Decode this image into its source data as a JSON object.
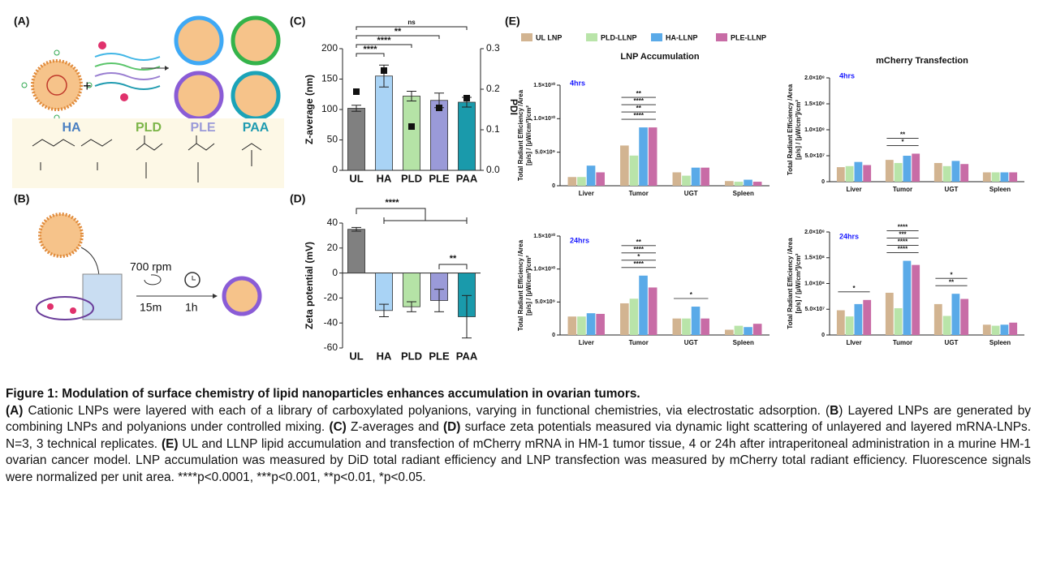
{
  "panels": {
    "a": "(A)",
    "b": "(B)",
    "c": "(C)",
    "d": "(D)",
    "e": "(E)"
  },
  "polymers": [
    "HA",
    "PLD",
    "PLE",
    "PAA"
  ],
  "mixing": {
    "speed": "700 rpm",
    "mix_time": "15m",
    "incubation": "1h"
  },
  "chart_data": [
    {
      "type": "bar",
      "y_label": "Z-average (nm)",
      "y2_label": "PDI",
      "categories": [
        "UL",
        "HA",
        "PLD",
        "PLE",
        "PAA"
      ],
      "values": [
        102,
        155,
        122,
        115,
        112
      ],
      "errors": [
        5,
        18,
        8,
        12,
        8
      ],
      "colors": [
        "#808080",
        "#a9d3f5",
        "#b5e3a6",
        "#9a9ad8",
        "#1a9aab"
      ],
      "ylim": [
        0,
        200
      ],
      "yticks": [
        0,
        50,
        100,
        150,
        200
      ],
      "y2lim": [
        0,
        0.3
      ],
      "y2ticks": [
        0.0,
        0.1,
        0.2,
        0.3
      ],
      "y2_points": [
        0.194,
        0.246,
        0.108,
        0.154,
        0.178
      ],
      "annotations": [
        "****",
        "****",
        "**",
        "ns"
      ]
    },
    {
      "type": "bar",
      "y_label": "Zeta potential (mV)",
      "categories": [
        "UL",
        "HA",
        "PLD",
        "PLE",
        "PAA"
      ],
      "values": [
        35,
        -30,
        -27,
        -22,
        -35
      ],
      "errors": [
        1.5,
        5,
        4,
        9,
        17
      ],
      "colors": [
        "#808080",
        "#a9d3f5",
        "#b5e3a6",
        "#9a9ad8",
        "#1a9aab"
      ],
      "ylim": [
        -60,
        40
      ],
      "yticks": [
        -60,
        -40,
        -20,
        0,
        20,
        40
      ],
      "annotations": [
        "****",
        "**"
      ]
    },
    {
      "type": "grouped_bar",
      "title": "LNP Accumulation",
      "subtitle": "4hrs",
      "y_label": [
        "Total Radiant Efficiency /Area",
        "[p/s] / [µW/cm²]/cm²"
      ],
      "categories": [
        "Liver",
        "Tumor",
        "UGT",
        "Spleen"
      ],
      "series": [
        {
          "name": "UL LNP",
          "color": "#d2b491",
          "values": [
            1300000000,
            6000000000,
            2000000000,
            700000000
          ]
        },
        {
          "name": "PLD-LLNP",
          "color": "#b9e4a9",
          "values": [
            1300000000,
            4500000000,
            1500000000,
            600000000
          ]
        },
        {
          "name": "HA-LLNP",
          "color": "#5aaae8",
          "values": [
            3000000000,
            8700000000,
            2700000000,
            900000000
          ]
        },
        {
          "name": "PLE-LLNP",
          "color": "#c86ca6",
          "values": [
            2000000000,
            8700000000,
            2700000000,
            600000000
          ]
        }
      ],
      "ylim": [
        0,
        15000000000
      ],
      "yticks": [
        0,
        {
          "value": 5000000000,
          "label": "5.0×10⁹"
        },
        {
          "value": 10000000000,
          "label": "1.0×10¹⁰"
        },
        {
          "value": 15000000000,
          "label": "1.5×10¹⁰"
        }
      ],
      "annotations": [
        {
          "label": "****",
          "at": 1
        },
        {
          "label": "**",
          "at": 1
        },
        {
          "label": "****",
          "at": 1
        },
        {
          "label": "**",
          "at": 1
        }
      ]
    },
    {
      "type": "grouped_bar",
      "title": "mCherry Transfection",
      "subtitle": "4hrs",
      "y_label": [
        "Total Radiant Efficiency /Area",
        "[p/s] / [µW/cm²]/cm²"
      ],
      "categories": [
        "Liver",
        "Tumor",
        "UGT",
        "Spleen"
      ],
      "series": [
        {
          "name": "UL LNP",
          "color": "#d2b491",
          "values": [
            28000000,
            42000000,
            36000000,
            18000000
          ]
        },
        {
          "name": "PLD-LLNP",
          "color": "#b9e4a9",
          "values": [
            30000000,
            36000000,
            30000000,
            18000000
          ]
        },
        {
          "name": "HA-LLNP",
          "color": "#5aaae8",
          "values": [
            38000000,
            50000000,
            40000000,
            18000000
          ]
        },
        {
          "name": "PLE-LLNP",
          "color": "#c86ca6",
          "values": [
            32000000,
            54000000,
            34000000,
            18000000
          ]
        }
      ],
      "ylim": [
        0,
        200000000
      ],
      "yticks": [
        0,
        {
          "value": 50000000,
          "label": "5.0×10⁷"
        },
        {
          "value": 100000000,
          "label": "1.0×10⁸"
        },
        {
          "value": 150000000,
          "label": "1.5×10⁸"
        },
        {
          "value": 200000000,
          "label": "2.0×10⁸"
        }
      ],
      "annotations": [
        {
          "label": "*",
          "at": 1
        },
        {
          "label": "**",
          "at": 1
        }
      ]
    },
    {
      "type": "grouped_bar",
      "subtitle": "24hrs",
      "y_label": [
        "Total Radiant Efficiency /Area",
        "[p/s] / [µW/cm²]/cm²"
      ],
      "categories": [
        "Liver",
        "Tumor",
        "UGT",
        "Spleen"
      ],
      "series": [
        {
          "name": "UL LNP",
          "color": "#d2b491",
          "values": [
            2800000000,
            4800000000,
            2500000000,
            800000000
          ]
        },
        {
          "name": "PLD-LLNP",
          "color": "#b9e4a9",
          "values": [
            2800000000,
            5500000000,
            2500000000,
            1400000000
          ]
        },
        {
          "name": "HA-LLNP",
          "color": "#5aaae8",
          "values": [
            3300000000,
            9000000000,
            4300000000,
            1200000000
          ]
        },
        {
          "name": "PLE-LLNP",
          "color": "#c86ca6",
          "values": [
            3200000000,
            7200000000,
            2500000000,
            1700000000
          ]
        }
      ],
      "ylim": [
        0,
        15000000000
      ],
      "yticks": [
        0,
        {
          "value": 5000000000,
          "label": "5.0×10⁹"
        },
        {
          "value": 10000000000,
          "label": "1.0×10¹⁰"
        },
        {
          "value": 15000000000,
          "label": "1.5×10¹⁰"
        }
      ],
      "annotations": [
        {
          "label": "****",
          "at": 1
        },
        {
          "label": "*",
          "at": 1
        },
        {
          "label": "****",
          "at": 1
        },
        {
          "label": "**",
          "at": 1
        },
        {
          "label": "*",
          "at": 2
        }
      ]
    },
    {
      "type": "grouped_bar",
      "subtitle": "24hrs",
      "y_label": [
        "Total Radiant Efficiency /Area",
        "[p/s] / [µW/cm²]/cm²"
      ],
      "categories": [
        "LIver",
        "Tumor",
        "UGT",
        "Spleen"
      ],
      "series": [
        {
          "name": "UL LNP",
          "color": "#d2b491",
          "values": [
            48000000,
            82000000,
            60000000,
            20000000
          ]
        },
        {
          "name": "PLD-LLNP",
          "color": "#b9e4a9",
          "values": [
            36000000,
            52000000,
            37000000,
            18000000
          ]
        },
        {
          "name": "HA-LLNP",
          "color": "#5aaae8",
          "values": [
            60000000,
            144000000,
            80000000,
            20000000
          ]
        },
        {
          "name": "PLE-LLNP",
          "color": "#c86ca6",
          "values": [
            68000000,
            136000000,
            70000000,
            24000000
          ]
        }
      ],
      "ylim": [
        0,
        200000000
      ],
      "yticks": [
        0,
        {
          "value": 50000000,
          "label": "5.0×10⁷"
        },
        {
          "value": 100000000,
          "label": "1.0×10⁸"
        },
        {
          "value": 150000000,
          "label": "1.5×10⁸"
        },
        {
          "value": 200000000,
          "label": "2.0×10⁸"
        }
      ],
      "annotations": [
        {
          "label": "*",
          "at": 0
        },
        {
          "label": "****",
          "at": 1
        },
        {
          "label": "****",
          "at": 1
        },
        {
          "label": "***",
          "at": 1
        },
        {
          "label": "****",
          "at": 1
        },
        {
          "label": "**",
          "at": 2
        },
        {
          "label": "*",
          "at": 2
        }
      ]
    }
  ],
  "caption": {
    "title": "Figure 1: Modulation of surface chemistry of lipid nanoparticles enhances accumulation in ovarian tumors.",
    "body": [
      {
        "text": "(A)",
        "bold": true
      },
      {
        "text": " Cationic LNPs were layered with each of a library of carboxylated polyanions, varying in functional chemistries, via electrostatic adsorption. (",
        "bold": false
      },
      {
        "text": "B",
        "bold": true
      },
      {
        "text": ") Layered LNPs are generated by combining LNPs and polyanions under controlled mixing. ",
        "bold": false
      },
      {
        "text": "(C)",
        "bold": true
      },
      {
        "text": " Z-averages and ",
        "bold": false
      },
      {
        "text": "(D)",
        "bold": true
      },
      {
        "text": " surface zeta potentials measured via dynamic light scattering of unlayered and layered mRNA-LNPs. N=3, 3 technical replicates. ",
        "bold": false
      },
      {
        "text": "(E)",
        "bold": true
      },
      {
        "text": " UL and LLNP lipid accumulation and transfection of mCherry mRNA in HM-1 tumor tissue, 4 or 24h after intraperitoneal administration in a murine HM-1 ovarian cancer model. LNP accumulation was measured by DiD total radiant efficiency and LNP transfection was measured by mCherry total radiant efficiency. Fluorescence signals were normalized per unit area. ****p<0.0001, ***p<0.001, **p<0.01, *p<0.05.",
        "bold": false
      }
    ]
  }
}
